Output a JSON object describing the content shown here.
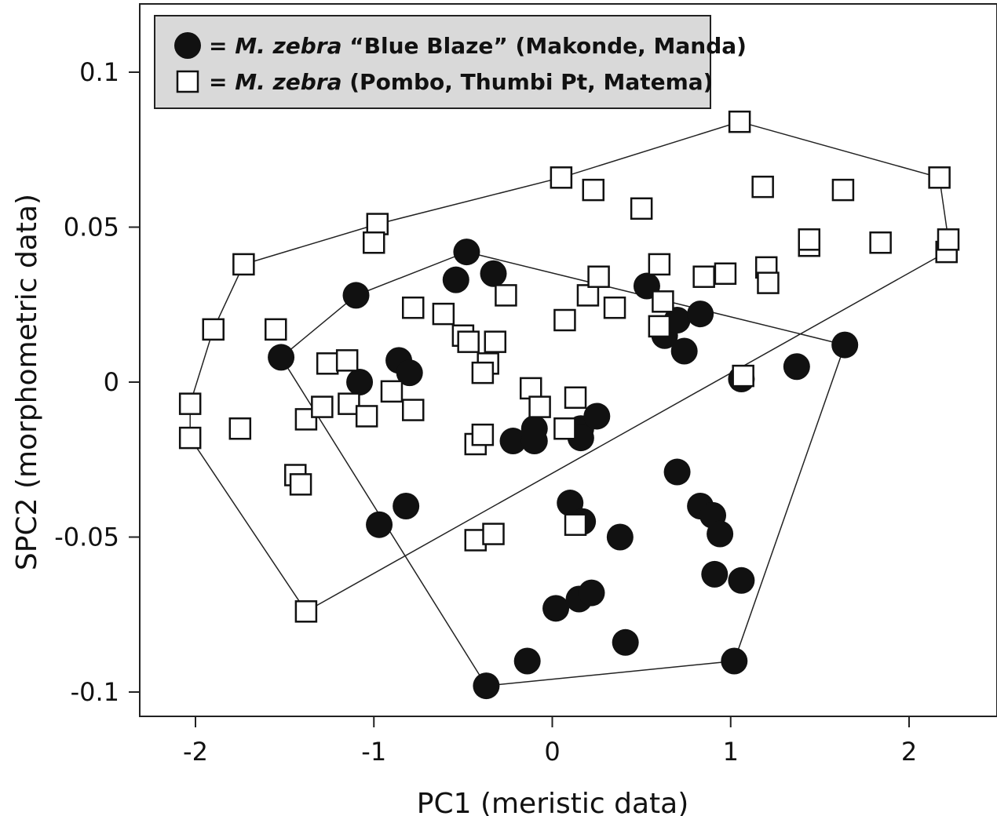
{
  "chart_data": {
    "type": "scatter",
    "title": "",
    "xlabel": "PC1 (meristic data)",
    "ylabel": "SPC2 (morphometric data)",
    "xlim": [
      -2.3,
      2.5
    ],
    "ylim": [
      -0.108,
      0.12
    ],
    "x_ticks": [
      -2,
      -1,
      0,
      1,
      2
    ],
    "x_tick_labels": [
      "-2",
      "-1",
      "0",
      "1",
      "2"
    ],
    "y_ticks": [
      0.1,
      0.05,
      0,
      -0.05,
      -0.1
    ],
    "y_tick_labels": [
      "0.1",
      "0.05",
      "0",
      "-0.05",
      "-0.1"
    ],
    "grid": false,
    "legend_position": "top-left",
    "legend": {
      "background": "#d9d9d9",
      "entries": [
        {
          "symbol": "filled-circle",
          "prefix": "= ",
          "species": "M. zebra",
          "rest": " “Blue Blaze” (Makonde, Manda)"
        },
        {
          "symbol": "open-square",
          "prefix": "= ",
          "species": "M. zebra",
          "rest": " (Pombo, Thumbi Pt, Matema)"
        }
      ]
    },
    "series": [
      {
        "name": "M. zebra “Blue Blaze” (Makonde, Manda)",
        "marker": "filled-circle",
        "color": "#111111",
        "points": [
          [
            -0.48,
            0.042
          ],
          [
            -0.54,
            0.033
          ],
          [
            -0.33,
            0.035
          ],
          [
            -1.1,
            0.028
          ],
          [
            -1.52,
            0.008
          ],
          [
            -1.08,
            0.0
          ],
          [
            -0.86,
            0.007
          ],
          [
            -0.8,
            0.003
          ],
          [
            -0.97,
            -0.046
          ],
          [
            -0.82,
            -0.04
          ],
          [
            -0.22,
            -0.019
          ],
          [
            -0.1,
            -0.015
          ],
          [
            -0.1,
            -0.019
          ],
          [
            0.16,
            -0.015
          ],
          [
            0.25,
            -0.011
          ],
          [
            0.16,
            -0.018
          ],
          [
            0.1,
            -0.039
          ],
          [
            0.17,
            -0.045
          ],
          [
            0.38,
            -0.05
          ],
          [
            0.53,
            0.031
          ],
          [
            0.63,
            0.015
          ],
          [
            0.7,
            0.02
          ],
          [
            0.74,
            0.01
          ],
          [
            0.83,
            0.022
          ],
          [
            1.06,
            0.001
          ],
          [
            1.37,
            0.005
          ],
          [
            1.64,
            0.012
          ],
          [
            0.7,
            -0.029
          ],
          [
            0.83,
            -0.04
          ],
          [
            0.9,
            -0.043
          ],
          [
            0.94,
            -0.049
          ],
          [
            0.91,
            -0.062
          ],
          [
            1.06,
            -0.064
          ],
          [
            0.02,
            -0.073
          ],
          [
            0.15,
            -0.07
          ],
          [
            0.22,
            -0.068
          ],
          [
            0.41,
            -0.084
          ],
          [
            -0.14,
            -0.09
          ],
          [
            -0.37,
            -0.098
          ],
          [
            1.02,
            -0.09
          ]
        ],
        "hull": [
          [
            -1.52,
            0.008
          ],
          [
            -1.1,
            0.028
          ],
          [
            -0.48,
            0.042
          ],
          [
            1.64,
            0.012
          ],
          [
            1.02,
            -0.09
          ],
          [
            -0.37,
            -0.098
          ]
        ]
      },
      {
        "name": "M. zebra (Pombo, Thumbi Pt, Matema)",
        "marker": "open-square",
        "color": "#111111",
        "points": [
          [
            1.05,
            0.084
          ],
          [
            0.05,
            0.066
          ],
          [
            2.17,
            0.066
          ],
          [
            0.23,
            0.062
          ],
          [
            0.5,
            0.056
          ],
          [
            1.18,
            0.063
          ],
          [
            1.63,
            0.062
          ],
          [
            -0.98,
            0.051
          ],
          [
            -1.0,
            0.045
          ],
          [
            -1.73,
            0.038
          ],
          [
            -1.9,
            0.017
          ],
          [
            -1.55,
            0.017
          ],
          [
            -2.03,
            -0.007
          ],
          [
            -2.03,
            -0.018
          ],
          [
            -1.75,
            -0.015
          ],
          [
            -1.38,
            -0.012
          ],
          [
            -1.44,
            -0.03
          ],
          [
            -1.41,
            -0.033
          ],
          [
            -1.38,
            -0.074
          ],
          [
            -1.26,
            0.006
          ],
          [
            -1.15,
            0.007
          ],
          [
            -1.14,
            -0.007
          ],
          [
            -1.04,
            -0.011
          ],
          [
            -1.29,
            -0.008
          ],
          [
            -0.9,
            -0.003
          ],
          [
            -0.78,
            -0.009
          ],
          [
            -0.78,
            0.024
          ],
          [
            -0.61,
            0.022
          ],
          [
            -0.5,
            0.015
          ],
          [
            -0.47,
            0.013
          ],
          [
            -0.32,
            0.013
          ],
          [
            -0.36,
            0.006
          ],
          [
            -0.39,
            0.003
          ],
          [
            -0.26,
            0.028
          ],
          [
            -0.12,
            -0.002
          ],
          [
            -0.07,
            -0.008
          ],
          [
            0.07,
            0.02
          ],
          [
            0.13,
            -0.005
          ],
          [
            0.2,
            0.028
          ],
          [
            0.26,
            0.034
          ],
          [
            0.35,
            0.024
          ],
          [
            0.6,
            0.038
          ],
          [
            0.62,
            0.026
          ],
          [
            0.6,
            0.018
          ],
          [
            0.85,
            0.034
          ],
          [
            0.97,
            0.035
          ],
          [
            1.2,
            0.037
          ],
          [
            1.21,
            0.032
          ],
          [
            1.44,
            0.044
          ],
          [
            1.44,
            0.046
          ],
          [
            1.84,
            0.045
          ],
          [
            2.21,
            0.042
          ],
          [
            2.22,
            0.046
          ],
          [
            1.07,
            0.002
          ],
          [
            0.07,
            -0.015
          ],
          [
            -0.43,
            -0.02
          ],
          [
            -0.39,
            -0.017
          ],
          [
            -0.43,
            -0.051
          ],
          [
            -0.33,
            -0.049
          ],
          [
            0.13,
            -0.046
          ]
        ],
        "hull": [
          [
            1.05,
            0.084
          ],
          [
            2.17,
            0.066
          ],
          [
            2.22,
            0.046
          ],
          [
            2.21,
            0.042
          ],
          [
            -1.38,
            -0.074
          ],
          [
            -2.03,
            -0.018
          ],
          [
            -2.03,
            -0.007
          ],
          [
            -1.9,
            0.017
          ],
          [
            -1.73,
            0.038
          ],
          [
            -0.98,
            0.051
          ],
          [
            0.05,
            0.066
          ]
        ]
      }
    ]
  }
}
